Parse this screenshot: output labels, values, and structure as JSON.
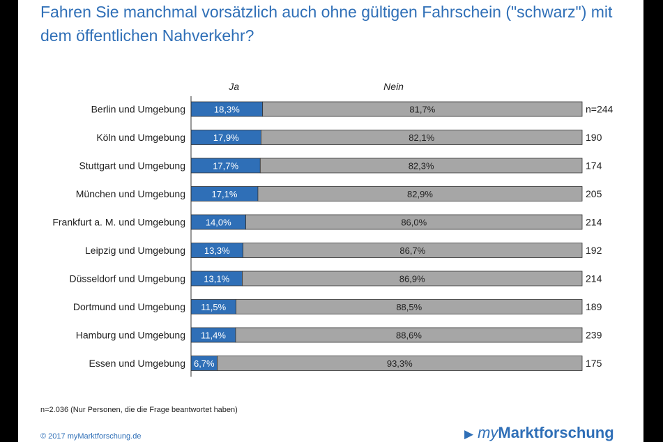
{
  "title": "Fahren Sie manchmal vorsätzlich auch ohne gültigen Fahrschein (\"schwarz\") mit dem öffentlichen Nahverkehr?",
  "chart_data": {
    "type": "bar",
    "orientation": "horizontal",
    "stacked": true,
    "percent_stacked": true,
    "legend": [
      "Ja",
      "Nein"
    ],
    "categories": [
      "Berlin und Umgebung",
      "Köln und Umgebung",
      "Stuttgart und Umgebung",
      "München und Umgebung",
      "Frankfurt a. M. und Umgebung",
      "Leipzig und Umgebung",
      "Düsseldorf und Umgebung",
      "Dortmund und Umgebung",
      "Hamburg und Umgebung",
      "Essen und Umgebung"
    ],
    "series": [
      {
        "name": "Ja",
        "color": "#2f6fb7",
        "values": [
          18.3,
          17.9,
          17.7,
          17.1,
          14.0,
          13.3,
          13.1,
          11.5,
          11.4,
          6.7
        ]
      },
      {
        "name": "Nein",
        "color": "#a6a6a6",
        "values": [
          81.7,
          82.1,
          82.3,
          82.9,
          86.0,
          86.7,
          86.9,
          88.5,
          88.6,
          93.3
        ]
      }
    ],
    "ja_labels": [
      "18,3%",
      "17,9%",
      "17,7%",
      "17,1%",
      "14,0%",
      "13,3%",
      "13,1%",
      "11,5%",
      "11,4%",
      "6,7%"
    ],
    "nein_labels": [
      "81,7%",
      "82,1%",
      "82,3%",
      "82,9%",
      "86,0%",
      "86,7%",
      "86,9%",
      "88,5%",
      "88,6%",
      "93,3%"
    ],
    "n_labels": [
      "n=244",
      "190",
      "174",
      "205",
      "214",
      "192",
      "214",
      "189",
      "239",
      "175"
    ],
    "xlim": [
      0,
      100
    ]
  },
  "footnote": "n=2.036 (Nur Personen, die die Frage beantwortet haben)",
  "copyright": "© 2017 myMarktforschung.de",
  "logo": {
    "arrow": "▶",
    "my": "my",
    "name": "Marktforschung"
  }
}
